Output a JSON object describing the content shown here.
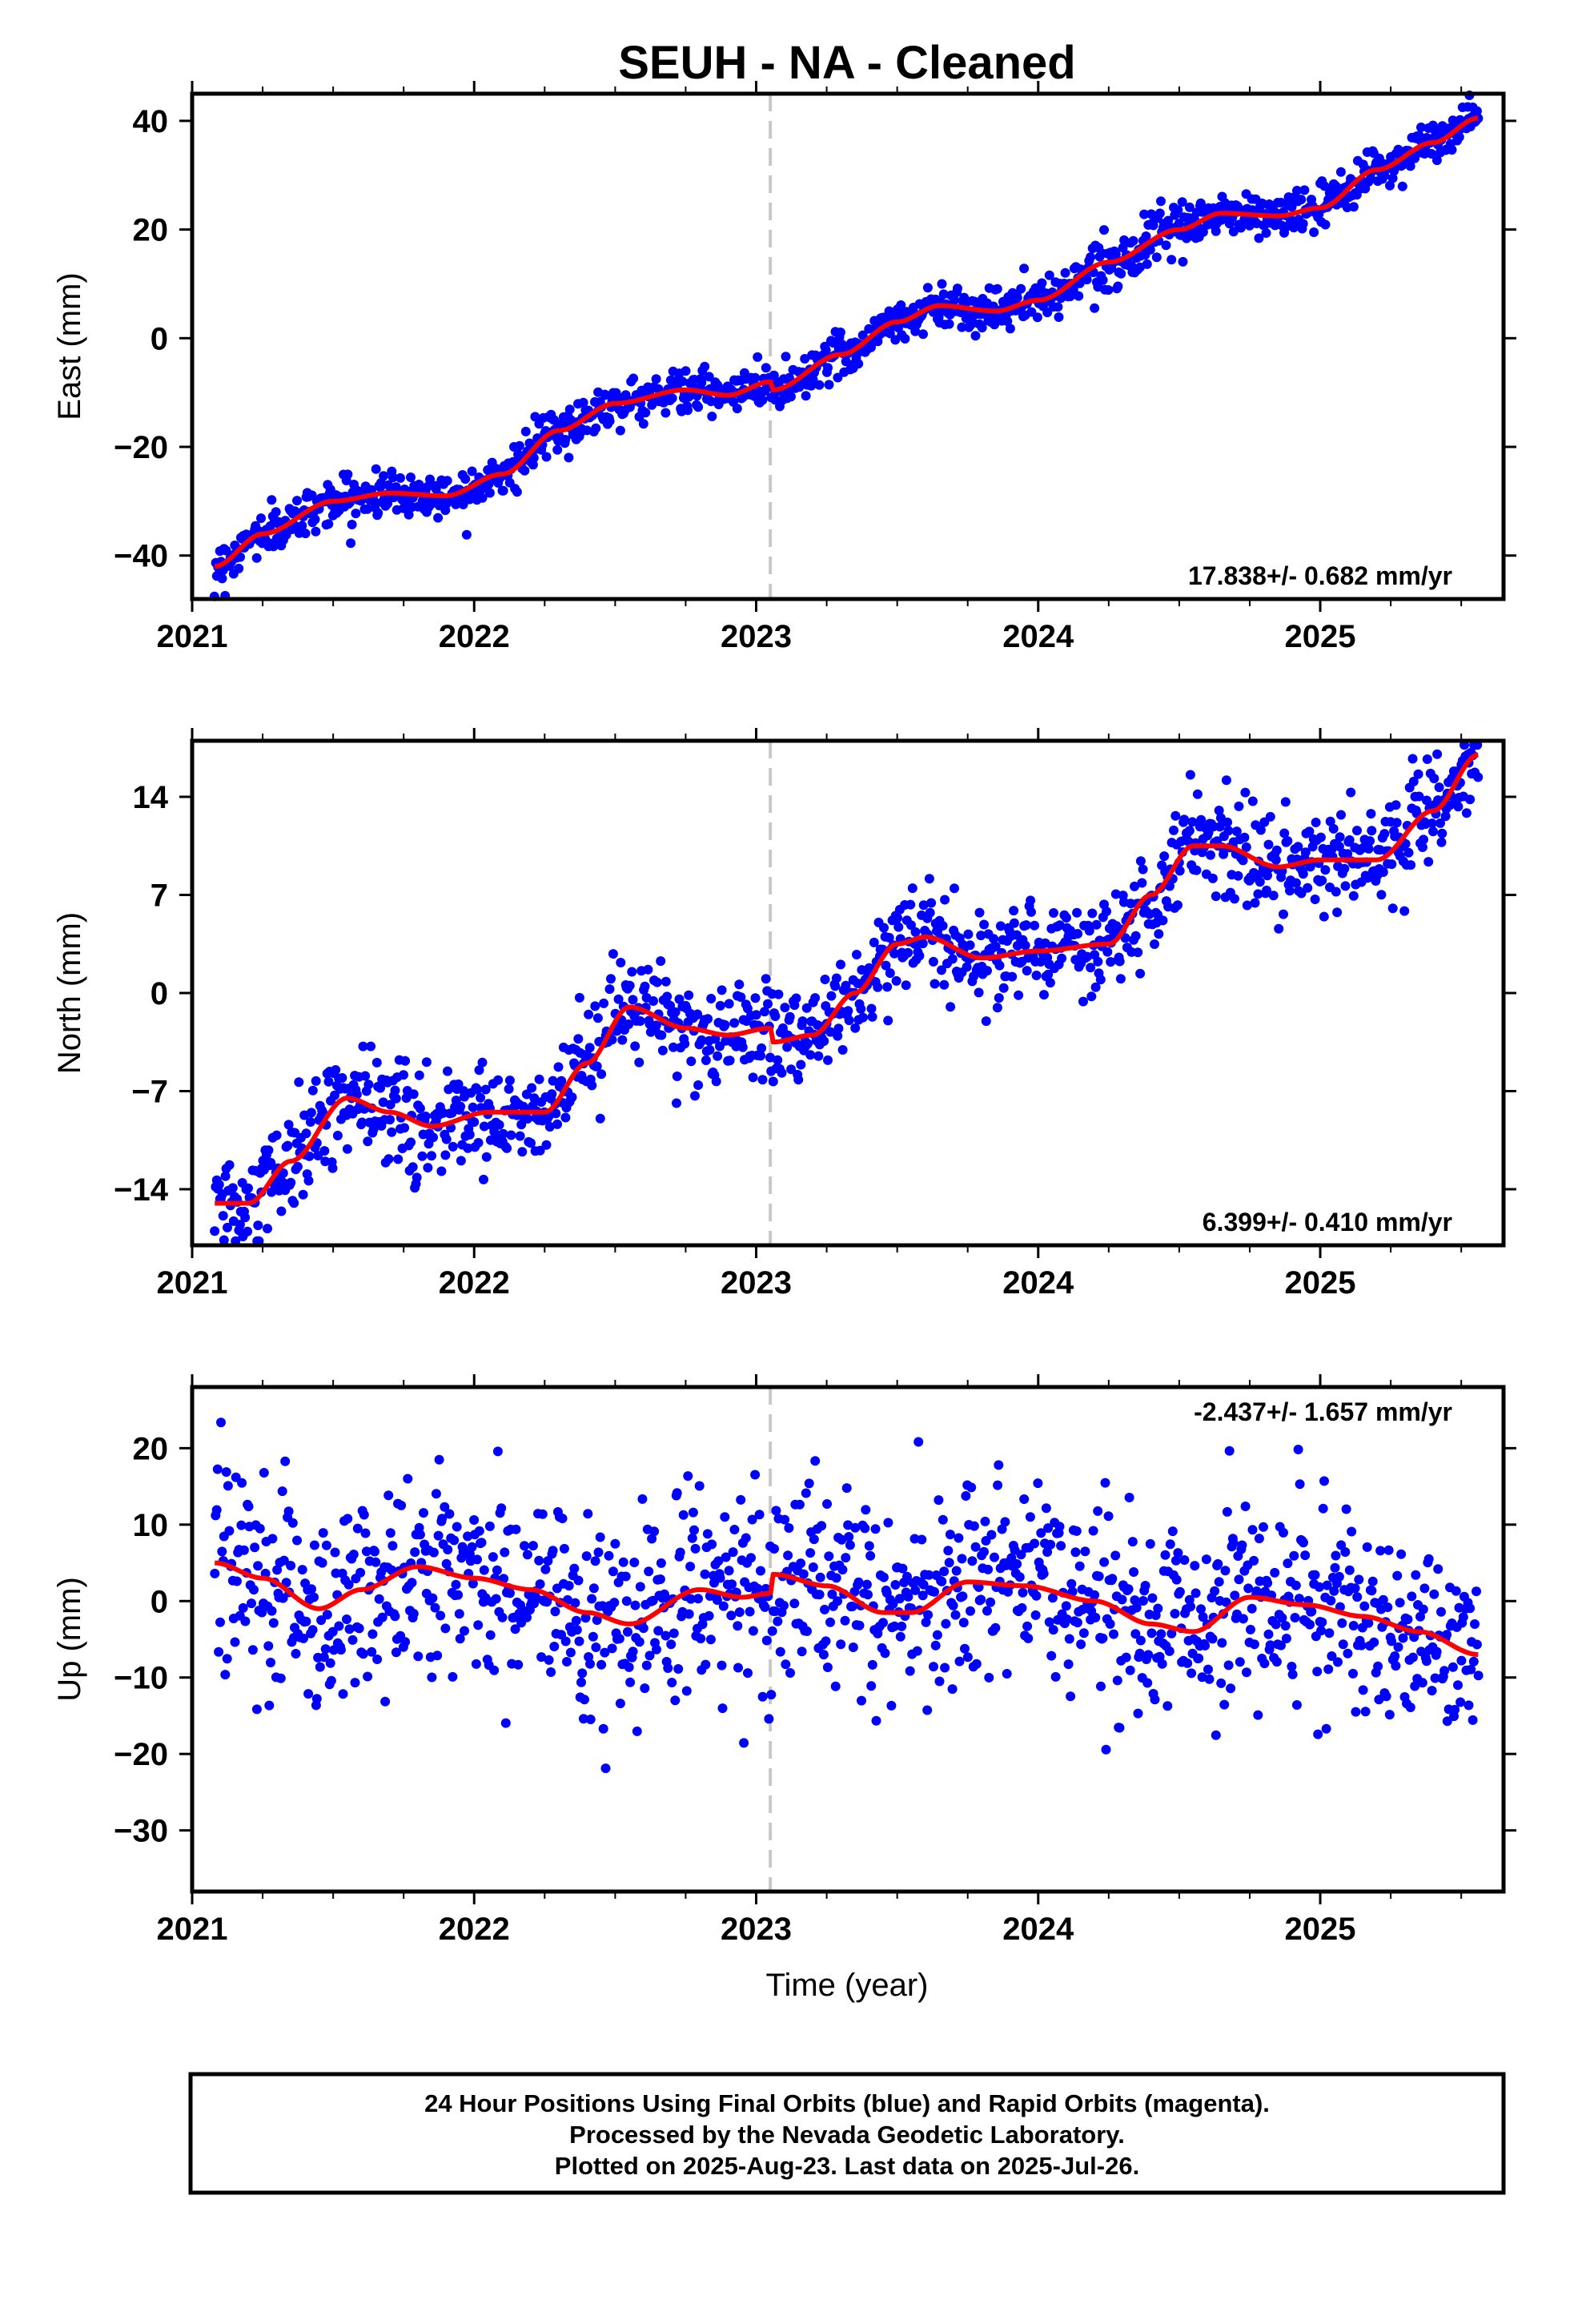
{
  "title": "SEUH  - NA - Cleaned",
  "xlabel": "Time (year)",
  "footer": [
    "24 Hour Positions Using Final Orbits (blue) and Rapid Orbits (magenta).",
    "Processed by the Nevada Geodetic Laboratory.",
    "Plotted on 2025-Aug-23. Last data on 2025-Jul-26."
  ],
  "colors": {
    "points": "#0000ff",
    "fit": "#ff0000",
    "equipment_change": "#c8c8c8",
    "frame": "#000000"
  },
  "chart_data": [
    {
      "type": "scatter",
      "name": "east",
      "ylabel": "East (mm)",
      "xlim": [
        2021.0,
        2025.65
      ],
      "ylim": [
        -48,
        45
      ],
      "yticks": [
        40,
        20,
        0,
        -20,
        -40
      ],
      "ytick_labels": [
        "40",
        "20",
        "0",
        "−20",
        "−40"
      ],
      "xticks": [
        2021,
        2022,
        2023,
        2024,
        2025
      ],
      "xtick_labels": [
        "2021",
        "2022",
        "2023",
        "2024",
        "2025"
      ],
      "equipment_change": 2023.05,
      "rate_label": "17.838+/- 0.682 mm/yr",
      "rate_position": "bottom-right",
      "grid": false,
      "x_start": 2021.08,
      "x_end": 2025.56,
      "fit_x": [
        2021.08,
        2021.25,
        2021.5,
        2021.7,
        2021.9,
        2022.1,
        2022.3,
        2022.5,
        2022.75,
        2022.9,
        2023.05,
        2023.06,
        2023.3,
        2023.5,
        2023.65,
        2023.85,
        2024.0,
        2024.25,
        2024.5,
        2024.65,
        2024.85,
        2025.0,
        2025.2,
        2025.4,
        2025.56
      ],
      "fit_y": [
        -42,
        -36,
        -30,
        -28.5,
        -29,
        -25,
        -17,
        -12,
        -9.5,
        -10.5,
        -8,
        -9.5,
        -3,
        3,
        6,
        5,
        7,
        14,
        20,
        23,
        22.5,
        24,
        31,
        36,
        40.5
      ],
      "scatter_sd": 2.0,
      "point_count": 1200
    },
    {
      "type": "scatter",
      "name": "north",
      "ylabel": "North (mm)",
      "xlim": [
        2021.0,
        2025.65
      ],
      "ylim": [
        -18,
        18
      ],
      "yticks": [
        14,
        7,
        0,
        -7,
        -14
      ],
      "ytick_labels": [
        "14",
        "7",
        "0",
        "−7",
        "−14"
      ],
      "xticks": [
        2021,
        2022,
        2023,
        2024,
        2025
      ],
      "xtick_labels": [
        "2021",
        "2022",
        "2023",
        "2024",
        "2025"
      ],
      "equipment_change": 2023.05,
      "rate_label": "6.399+/- 0.410 mm/yr",
      "rate_position": "bottom-right",
      "grid": false,
      "x_start": 2021.08,
      "x_end": 2025.56,
      "fit_x": [
        2021.08,
        2021.2,
        2021.35,
        2021.55,
        2021.7,
        2021.85,
        2022.05,
        2022.25,
        2022.4,
        2022.55,
        2022.75,
        2022.9,
        2023.05,
        2023.06,
        2023.2,
        2023.35,
        2023.5,
        2023.6,
        2023.8,
        2024.0,
        2024.25,
        2024.4,
        2024.55,
        2024.65,
        2024.85,
        2025.0,
        2025.2,
        2025.4,
        2025.56
      ],
      "fit_y": [
        -15,
        -15,
        -12,
        -7.5,
        -8.5,
        -9.5,
        -8.5,
        -8.5,
        -5,
        -1,
        -2.5,
        -3,
        -2.5,
        -3.5,
        -3,
        0,
        3.5,
        4,
        2.5,
        3,
        3.5,
        7,
        10.5,
        10.5,
        9,
        9.5,
        9.5,
        13,
        17
      ],
      "scatter_sd": 1.8,
      "point_count": 1200
    },
    {
      "type": "scatter",
      "name": "up",
      "ylabel": "Up (mm)",
      "xlim": [
        2021.0,
        2025.65
      ],
      "ylim": [
        -38,
        28
      ],
      "yticks": [
        20,
        10,
        0,
        -10,
        -20,
        -30
      ],
      "ytick_labels": [
        "20",
        "10",
        "0",
        "−10",
        "−20",
        "−30"
      ],
      "xticks": [
        2021,
        2022,
        2023,
        2024,
        2025
      ],
      "xtick_labels": [
        "2021",
        "2022",
        "2023",
        "2024",
        "2025"
      ],
      "equipment_change": 2023.05,
      "rate_label": "-2.437+/- 1.657 mm/yr",
      "rate_position": "top-right",
      "grid": false,
      "x_start": 2021.08,
      "x_end": 2025.56,
      "fit_x": [
        2021.08,
        2021.25,
        2021.45,
        2021.6,
        2021.8,
        2022.0,
        2022.2,
        2022.4,
        2022.55,
        2022.8,
        2022.95,
        2023.05,
        2023.06,
        2023.25,
        2023.45,
        2023.55,
        2023.75,
        2023.95,
        2024.2,
        2024.4,
        2024.55,
        2024.75,
        2024.95,
        2025.15,
        2025.35,
        2025.56
      ],
      "fit_y": [
        5,
        3,
        -1,
        1.5,
        4.5,
        3,
        1.5,
        -1.5,
        -3,
        1.5,
        0.5,
        1,
        3.5,
        2,
        -1.5,
        -1.5,
        2.5,
        2,
        0,
        -3,
        -4,
        0.5,
        -0.5,
        -2,
        -4,
        -7
      ],
      "scatter_sd": 6.5,
      "point_count": 1200
    }
  ]
}
